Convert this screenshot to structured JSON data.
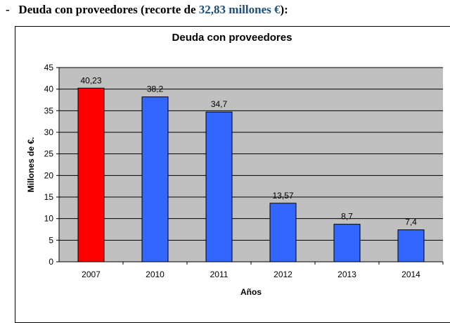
{
  "heading": {
    "dash": "-",
    "prefix": "Deuda con proveedores (recorte de ",
    "highlight": "32,83 millones €",
    "suffix": "):"
  },
  "chart_data": {
    "type": "bar",
    "title": "Deuda con proveedores",
    "xlabel": "Años",
    "ylabel": "Millones de €.",
    "categories": [
      "2007",
      "2010",
      "2011",
      "2012",
      "2013",
      "2014"
    ],
    "values": [
      40.23,
      38.2,
      34.7,
      13.57,
      8.7,
      7.4
    ],
    "data_labels": [
      "40,23",
      "38,2",
      "34,7",
      "13,57",
      "8,7",
      "7,4"
    ],
    "bar_colors": [
      "#ff0000",
      "#3366ff",
      "#3366ff",
      "#3366ff",
      "#3366ff",
      "#3366ff"
    ],
    "ylim": [
      0,
      45
    ],
    "yticks": [
      0,
      5,
      10,
      15,
      20,
      25,
      30,
      35,
      40,
      45
    ],
    "grid": true,
    "plot_background": "#c0c0c0",
    "legend": "none"
  }
}
